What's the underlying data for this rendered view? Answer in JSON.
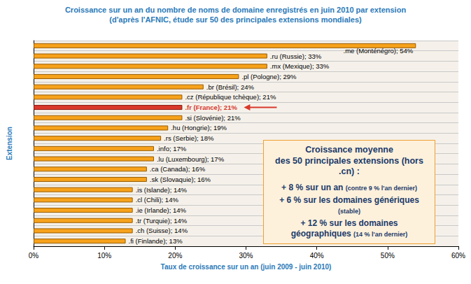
{
  "chart_data": {
    "type": "bar",
    "title": "Croissance sur un an du nombre de noms de domaine enregistrés en juin 2010 par extension",
    "subtitle": "(d'après l'AFNIC, étude sur 50 des principales extensions mondiales)",
    "x_label": "Taux de croissance sur un an (juin 2009 - juin 2010)",
    "y_label": "Extension",
    "orientation": "horizontal",
    "categories": [
      ".me (Monténégro)",
      ".ru (Russie)",
      ".mx (Mexique)",
      ".pl (Pologne)",
      ".br (Brésil)",
      ".cz (République tchèque)",
      ".fr (France)",
      ".si (Slovénie)",
      ".hu (Hongrie)",
      ".rs (Serbie)",
      ".info",
      ".lu (Luxembourg)",
      ".ca (Canada)",
      ".sk (Slovaquie)",
      ".is (Islande)",
      ".cl (Chili)",
      ".ie (Irlande)",
      ".tr (Turquie)",
      ".ch (Suisse)",
      ".fi (Finlande)"
    ],
    "values": [
      54,
      33,
      33,
      29,
      24,
      21,
      21,
      21,
      19,
      18,
      17,
      17,
      16,
      16,
      14,
      14,
      14,
      14,
      14,
      13
    ],
    "value_labels": [
      ".me (Monténégro); 54%",
      ".ru (Russie); 33%",
      ".mx (Mexique); 33%",
      ".pl (Pologne); 29%",
      ".br (Brésil); 24%",
      ".cz (République tchèque); 21%",
      ".fr (France); 21%",
      ".si (Slovénie); 21%",
      ".hu (Hongrie); 19%",
      ".rs (Serbie); 18%",
      ".info; 17%",
      ".lu (Luxembourg); 17%",
      ".ca (Canada); 16%",
      ".sk (Slovaquie); 16%",
      ".is (Islande); 14%",
      ".cl (Chili); 14%",
      ".ie (Irlande); 14%",
      ".tr (Turquie); 14%",
      ".ch (Suisse); 14%",
      ".fi (Finlande); 13%"
    ],
    "colors": [
      "#f7a21b",
      "#f7a21b",
      "#f7a21b",
      "#f7a21b",
      "#f7a21b",
      "#f7a21b",
      "#d9382a",
      "#f7a21b",
      "#f7a21b",
      "#f7a21b",
      "#f7a21b",
      "#f7a21b",
      "#f7a21b",
      "#f7a21b",
      "#f7a21b",
      "#f7a21b",
      "#f7a21b",
      "#f7a21b",
      "#f7a21b",
      "#f7a21b"
    ],
    "xlim": [
      0,
      60
    ],
    "xticks": [
      {
        "value": 0,
        "label": "0%"
      },
      {
        "value": 10,
        "label": "10%"
      },
      {
        "value": 20,
        "label": "20%"
      },
      {
        "value": 30,
        "label": "30%"
      },
      {
        "value": 40,
        "label": "40%"
      },
      {
        "value": 50,
        "label": "50%"
      },
      {
        "value": 60,
        "label": "60%"
      }
    ],
    "grid": true,
    "data_labels": true,
    "tick_labels": "x",
    "annotations": {
      "heading": [
        "Croissance moyenne",
        "des 50 principales extensions (hors .cn) :"
      ],
      "items": [
        {
          "text": "+ 8 % sur un an",
          "note": "(contre 9 % l'an dernier)"
        },
        {
          "text": "+ 6 % sur les domaines génériques",
          "note": "(stable)"
        },
        {
          "text": "+ 12 % sur les domaines géographiques",
          "note": "(14 % l'an dernier)"
        }
      ]
    }
  }
}
